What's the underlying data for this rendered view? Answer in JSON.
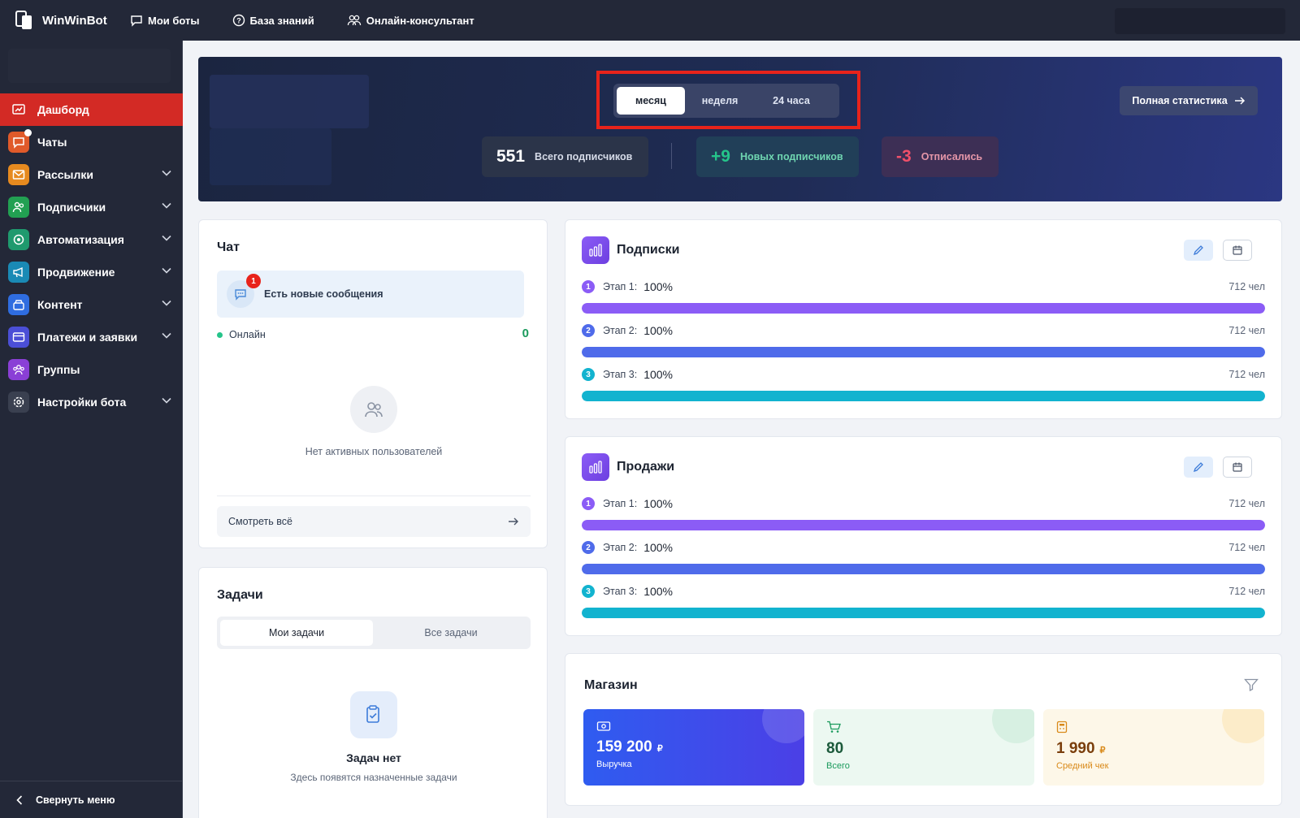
{
  "app": {
    "name": "WinWinBot"
  },
  "topnav": [
    {
      "label": "Мои боты",
      "icon": "chat-bubble-icon"
    },
    {
      "label": "База знаний",
      "icon": "help-circle-icon"
    },
    {
      "label": "Онлайн-консультант",
      "icon": "users-icon"
    }
  ],
  "sidebar": {
    "items": [
      {
        "label": "Дашборд",
        "icon": "dashboard-icon",
        "color": "#d32a25",
        "active": true
      },
      {
        "label": "Чаты",
        "icon": "chats-icon",
        "color": "#e05a2a"
      },
      {
        "label": "Рассылки",
        "icon": "mail-icon",
        "color": "#e68a1f"
      },
      {
        "label": "Подписчики",
        "icon": "subscribers-icon",
        "color": "#22a052"
      },
      {
        "label": "Автоматизация",
        "icon": "automation-icon",
        "color": "#1f9a6e"
      },
      {
        "label": "Продвижение",
        "icon": "megaphone-icon",
        "color": "#1a8ab5"
      },
      {
        "label": "Контент",
        "icon": "content-icon",
        "color": "#2f6de0"
      },
      {
        "label": "Платежи и заявки",
        "icon": "payments-icon",
        "color": "#4b4fd6"
      },
      {
        "label": "Группы",
        "icon": "groups-icon",
        "color": "#8a3fd6"
      },
      {
        "label": "Настройки бота",
        "icon": "settings-icon",
        "color": "#3a4050"
      }
    ],
    "collapse_label": "Свернуть меню"
  },
  "hero": {
    "periods": [
      "месяц",
      "неделя",
      "24 часа"
    ],
    "selected_period": "месяц",
    "full_stats_label": "Полная статистика",
    "stats": [
      {
        "value": "551",
        "label": "Всего подписчиков",
        "color": "#ffffff"
      },
      {
        "value": "+9",
        "label": "Новых подписчиков",
        "color": "#25c48a"
      },
      {
        "value": "-3",
        "label": "Отписались",
        "color": "#f0506a"
      }
    ]
  },
  "chat": {
    "title": "Чат",
    "new_messages": "Есть новые сообщения",
    "new_count": "1",
    "online_label": "Онлайн",
    "online_count": "0",
    "empty_text": "Нет активных пользователей",
    "view_all": "Смотреть всё"
  },
  "tasks": {
    "title": "Задачи",
    "tabs": [
      "Мои задачи",
      "Все задачи"
    ],
    "empty_title": "Задач нет",
    "empty_text": "Здесь появятся назначенные задачи"
  },
  "subscriptions": {
    "title": "Подписки",
    "stages": [
      {
        "num": "1",
        "label": "Этап 1:",
        "pct": "100%",
        "count": "712 чел",
        "color": "#8b5cf6",
        "fill": 1.0
      },
      {
        "num": "2",
        "label": "Этап 2:",
        "pct": "100%",
        "count": "712 чел",
        "color": "#4f6bea",
        "fill": 1.0
      },
      {
        "num": "3",
        "label": "Этап 3:",
        "pct": "100%",
        "count": "712 чел",
        "color": "#12b3cf",
        "fill": 1.0
      }
    ]
  },
  "sales": {
    "title": "Продажи",
    "stages": [
      {
        "num": "1",
        "label": "Этап 1:",
        "pct": "100%",
        "count": "712 чел",
        "color": "#8b5cf6",
        "fill": 1.0
      },
      {
        "num": "2",
        "label": "Этап 2:",
        "pct": "100%",
        "count": "712 чел",
        "color": "#4f6bea",
        "fill": 1.0
      },
      {
        "num": "3",
        "label": "Этап 3:",
        "pct": "100%",
        "count": "712 чел",
        "color": "#12b3cf",
        "fill": 1.0
      }
    ]
  },
  "shop": {
    "title": "Магазин",
    "tiles": [
      {
        "value": "159 200",
        "currency": "₽",
        "caption": "Выручка"
      },
      {
        "value": "80",
        "currency": "",
        "caption": "Всего"
      },
      {
        "value": "1 990",
        "currency": "₽",
        "caption": "Средний чек"
      }
    ]
  }
}
